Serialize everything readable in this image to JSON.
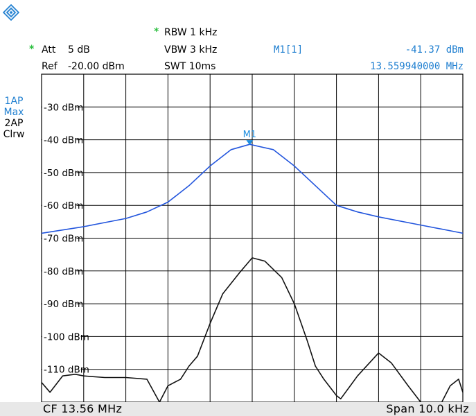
{
  "header": {
    "att_star": "*",
    "att_label": "Att",
    "att_value": "5 dB",
    "ref_label": "Ref",
    "ref_value": "-20.00 dBm",
    "rbw_star": "*",
    "rbw": "RBW 1 kHz",
    "vbw": "VBW 3 kHz",
    "swt": "SWT 10ms",
    "marker_id": "M1[1]",
    "marker_level": "-41.37 dBm",
    "marker_freq": "13.559940000 MHz"
  },
  "traces": {
    "t1_name": "1AP",
    "t1_mode": "Max",
    "t2_name": "2AP",
    "t2_mode": "Clrw"
  },
  "footer": {
    "cf": "CF 13.56 MHz",
    "span": "Span 10.0 kHz"
  },
  "colors": {
    "trace1": "#2255dd",
    "trace2": "#111111",
    "marker": "#1f8fe0",
    "grid": "#000000",
    "star": "#2bbf3f"
  },
  "chart_data": {
    "type": "line",
    "title": "",
    "xlabel": "",
    "ylabel": "",
    "xlim": [
      13.555,
      13.565
    ],
    "ylim": [
      -120,
      -20
    ],
    "x_unit": "MHz",
    "y_unit": "dBm",
    "grid": true,
    "ytick_labels": [
      "-30 dBm",
      "-40 dBm",
      "-50 dBm",
      "-60 dBm",
      "-70 dBm",
      "-80 dBm",
      "-90 dBm",
      "-100 dBm",
      "-110 dBm"
    ],
    "ytick_values": [
      -30,
      -40,
      -50,
      -60,
      -70,
      -80,
      -90,
      -100,
      -110
    ],
    "marker": {
      "label": "M1",
      "x": 13.55994,
      "y": -41.37
    },
    "series": [
      {
        "name": "1AP",
        "x": [
          13.555,
          13.556,
          13.557,
          13.5575,
          13.558,
          13.5585,
          13.559,
          13.5595,
          13.55994,
          13.5605,
          13.561,
          13.5615,
          13.562,
          13.5625,
          13.563,
          13.564,
          13.565
        ],
        "values": [
          -68.5,
          -66.5,
          -64,
          -62,
          -59,
          -54,
          -48,
          -43,
          -41.4,
          -43,
          -48,
          -54,
          -60,
          -62,
          -63.5,
          -66,
          -68.5
        ]
      },
      {
        "name": "2AP",
        "x": [
          13.555,
          13.5552,
          13.5555,
          13.5558,
          13.556,
          13.5565,
          13.557,
          13.5575,
          13.5578,
          13.558,
          13.5583,
          13.5585,
          13.5587,
          13.559,
          13.5593,
          13.5597,
          13.56,
          13.5603,
          13.5607,
          13.561,
          13.5613,
          13.5615,
          13.5617,
          13.562,
          13.5621,
          13.5625,
          13.563,
          13.5633,
          13.5637,
          13.564,
          13.5645,
          13.5647,
          13.5649,
          13.565
        ],
        "values": [
          -114,
          -117,
          -112,
          -111.5,
          -112,
          -112.5,
          -112.5,
          -113,
          -120,
          -115,
          -113,
          -109,
          -106,
          -96,
          -87,
          -80.5,
          -76,
          -77,
          -82,
          -90,
          -101,
          -109,
          -113,
          -118,
          -119,
          -112,
          -105,
          -108,
          -115,
          -120,
          -120,
          -115,
          -113,
          -117
        ]
      }
    ]
  }
}
